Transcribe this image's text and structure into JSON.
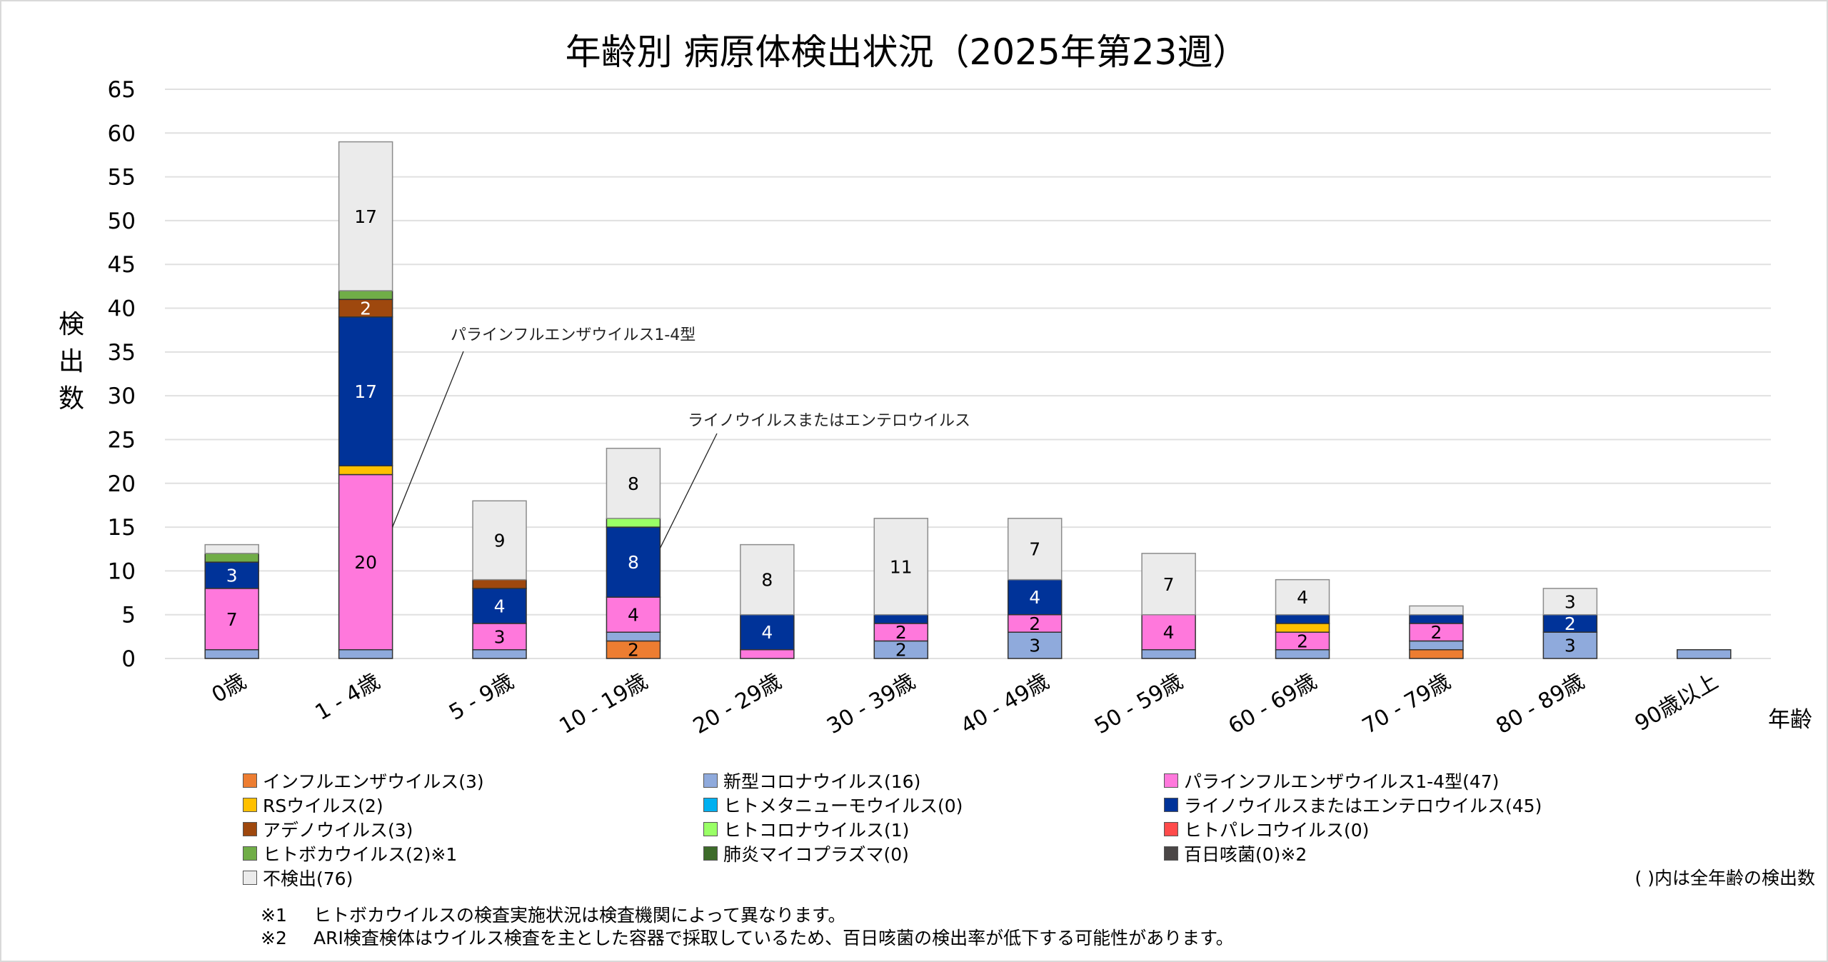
{
  "chart_data": {
    "type": "bar",
    "stacked": true,
    "title": "年齢別 病原体検出状況（2025年第23週）",
    "xlabel": "年齢",
    "ylabel": "検出数",
    "ylim": [
      0,
      65
    ],
    "yticks": [
      0,
      5,
      10,
      15,
      20,
      25,
      30,
      35,
      40,
      45,
      50,
      55,
      60,
      65
    ],
    "grid": true,
    "categories": [
      "0歳",
      "1 - 4歳",
      "5 - 9歳",
      "10 - 19歳",
      "20 - 29歳",
      "30 - 39歳",
      "40 - 49歳",
      "50 - 59歳",
      "60 - 69歳",
      "70 - 79歳",
      "80 - 89歳",
      "90歳以上"
    ],
    "series": [
      {
        "name": "インフルエンザウイルス",
        "legend": "インフルエンザウイルス(3)",
        "color": "#ED7D31",
        "label_color": "#000000",
        "values": [
          0,
          0,
          0,
          2,
          0,
          0,
          0,
          0,
          0,
          1,
          0,
          0
        ]
      },
      {
        "name": "新型コロナウイルス",
        "legend": "新型コロナウイルス(16)",
        "color": "#8FAADC",
        "label_color": "#000000",
        "values": [
          1,
          1,
          1,
          1,
          0,
          2,
          3,
          1,
          1,
          1,
          3,
          1
        ]
      },
      {
        "name": "パラインフルエンザウイルス1-4型",
        "legend": "パラインフルエンザウイルス1-4型(47)",
        "color": "#FF78DC",
        "label_color": "#000000",
        "values": [
          7,
          20,
          3,
          4,
          1,
          2,
          2,
          4,
          2,
          2,
          0,
          0
        ]
      },
      {
        "name": "RSウイルス",
        "legend": "RSウイルス(2)",
        "color": "#FFC000",
        "label_color": "#000000",
        "values": [
          0,
          1,
          0,
          0,
          0,
          0,
          0,
          0,
          1,
          0,
          0,
          0
        ]
      },
      {
        "name": "ヒトメタニューモウイルス",
        "legend": "ヒトメタニューモウイルス(0)",
        "color": "#00B0F0",
        "label_color": "#000000",
        "values": [
          0,
          0,
          0,
          0,
          0,
          0,
          0,
          0,
          0,
          0,
          0,
          0
        ]
      },
      {
        "name": "ライノウイルスまたはエンテロウイルス",
        "legend": "ライノウイルスまたはエンテロウイルス(45)",
        "color": "#003399",
        "label_color": "#FFFFFF",
        "values": [
          3,
          17,
          4,
          8,
          4,
          1,
          4,
          0,
          1,
          1,
          2,
          0
        ]
      },
      {
        "name": "アデノウイルス",
        "legend": "アデノウイルス(3)",
        "color": "#9E480E",
        "label_color": "#FFFFFF",
        "values": [
          0,
          2,
          1,
          0,
          0,
          0,
          0,
          0,
          0,
          0,
          0,
          0
        ]
      },
      {
        "name": "ヒトコロナウイルス",
        "legend": "ヒトコロナウイルス(1)",
        "color": "#99FF66",
        "label_color": "#000000",
        "values": [
          0,
          0,
          0,
          1,
          0,
          0,
          0,
          0,
          0,
          0,
          0,
          0
        ]
      },
      {
        "name": "ヒトパレコウイルス",
        "legend": "ヒトパレコウイルス(0)",
        "color": "#FF4B4B",
        "label_color": "#000000",
        "values": [
          0,
          0,
          0,
          0,
          0,
          0,
          0,
          0,
          0,
          0,
          0,
          0
        ]
      },
      {
        "name": "ヒトボカウイルス",
        "legend": "ヒトボカウイルス(2)※1",
        "color": "#70AD47",
        "label_color": "#000000",
        "values": [
          1,
          1,
          0,
          0,
          0,
          0,
          0,
          0,
          0,
          0,
          0,
          0
        ]
      },
      {
        "name": "肺炎マイコプラズマ",
        "legend": "肺炎マイコプラズマ(0)",
        "color": "#3D6B2A",
        "label_color": "#FFFFFF",
        "values": [
          0,
          0,
          0,
          0,
          0,
          0,
          0,
          0,
          0,
          0,
          0,
          0
        ]
      },
      {
        "name": "百日咳菌",
        "legend": "百日咳菌(0)※2",
        "color": "#4A4646",
        "label_color": "#FFFFFF",
        "values": [
          0,
          0,
          0,
          0,
          0,
          0,
          0,
          0,
          0,
          0,
          0,
          0
        ]
      },
      {
        "name": "不検出",
        "legend": "不検出(76)",
        "color": "#EBEBEB",
        "label_color": "#000000",
        "values": [
          1,
          17,
          9,
          8,
          8,
          11,
          7,
          7,
          4,
          1,
          3,
          0
        ]
      }
    ],
    "data_labels": {
      "min_value_shown": 2
    },
    "annotations": [
      {
        "text": "パラインフルエンザウイルス1-4型",
        "target_category": "1 - 4歳",
        "target_series": "パラインフルエンザウイルス1-4型"
      },
      {
        "text": "ライノウイルスまたはエンテロウイルス",
        "target_category": "10 - 19歳",
        "target_series": "ライノウイルスまたはエンテロウイルス"
      }
    ],
    "legend_position": "bottom"
  },
  "legend_order": [
    [
      "インフルエンザウイルス",
      "新型コロナウイルス",
      "パラインフルエンザウイルス1-4型"
    ],
    [
      "RSウイルス",
      "ヒトメタニューモウイルス",
      "ライノウイルスまたはエンテロウイルス"
    ],
    [
      "アデノウイルス",
      "ヒトコロナウイルス",
      "ヒトパレコウイルス"
    ],
    [
      "ヒトボカウイルス",
      "肺炎マイコプラズマ",
      "百日咳菌"
    ],
    [
      "不検出"
    ]
  ],
  "notes": {
    "parenthesis_note": "( )内は全年齢の検出数",
    "footnotes": [
      {
        "mark": "※1",
        "text": "ヒトボカウイルスの検査実施状況は検査機関によって異なります。"
      },
      {
        "mark": "※2",
        "text": "ARI検査検体はウイルス検査を主とした容器で採取しているため、百日咳菌の検出率が低下する可能性があります。"
      }
    ]
  }
}
